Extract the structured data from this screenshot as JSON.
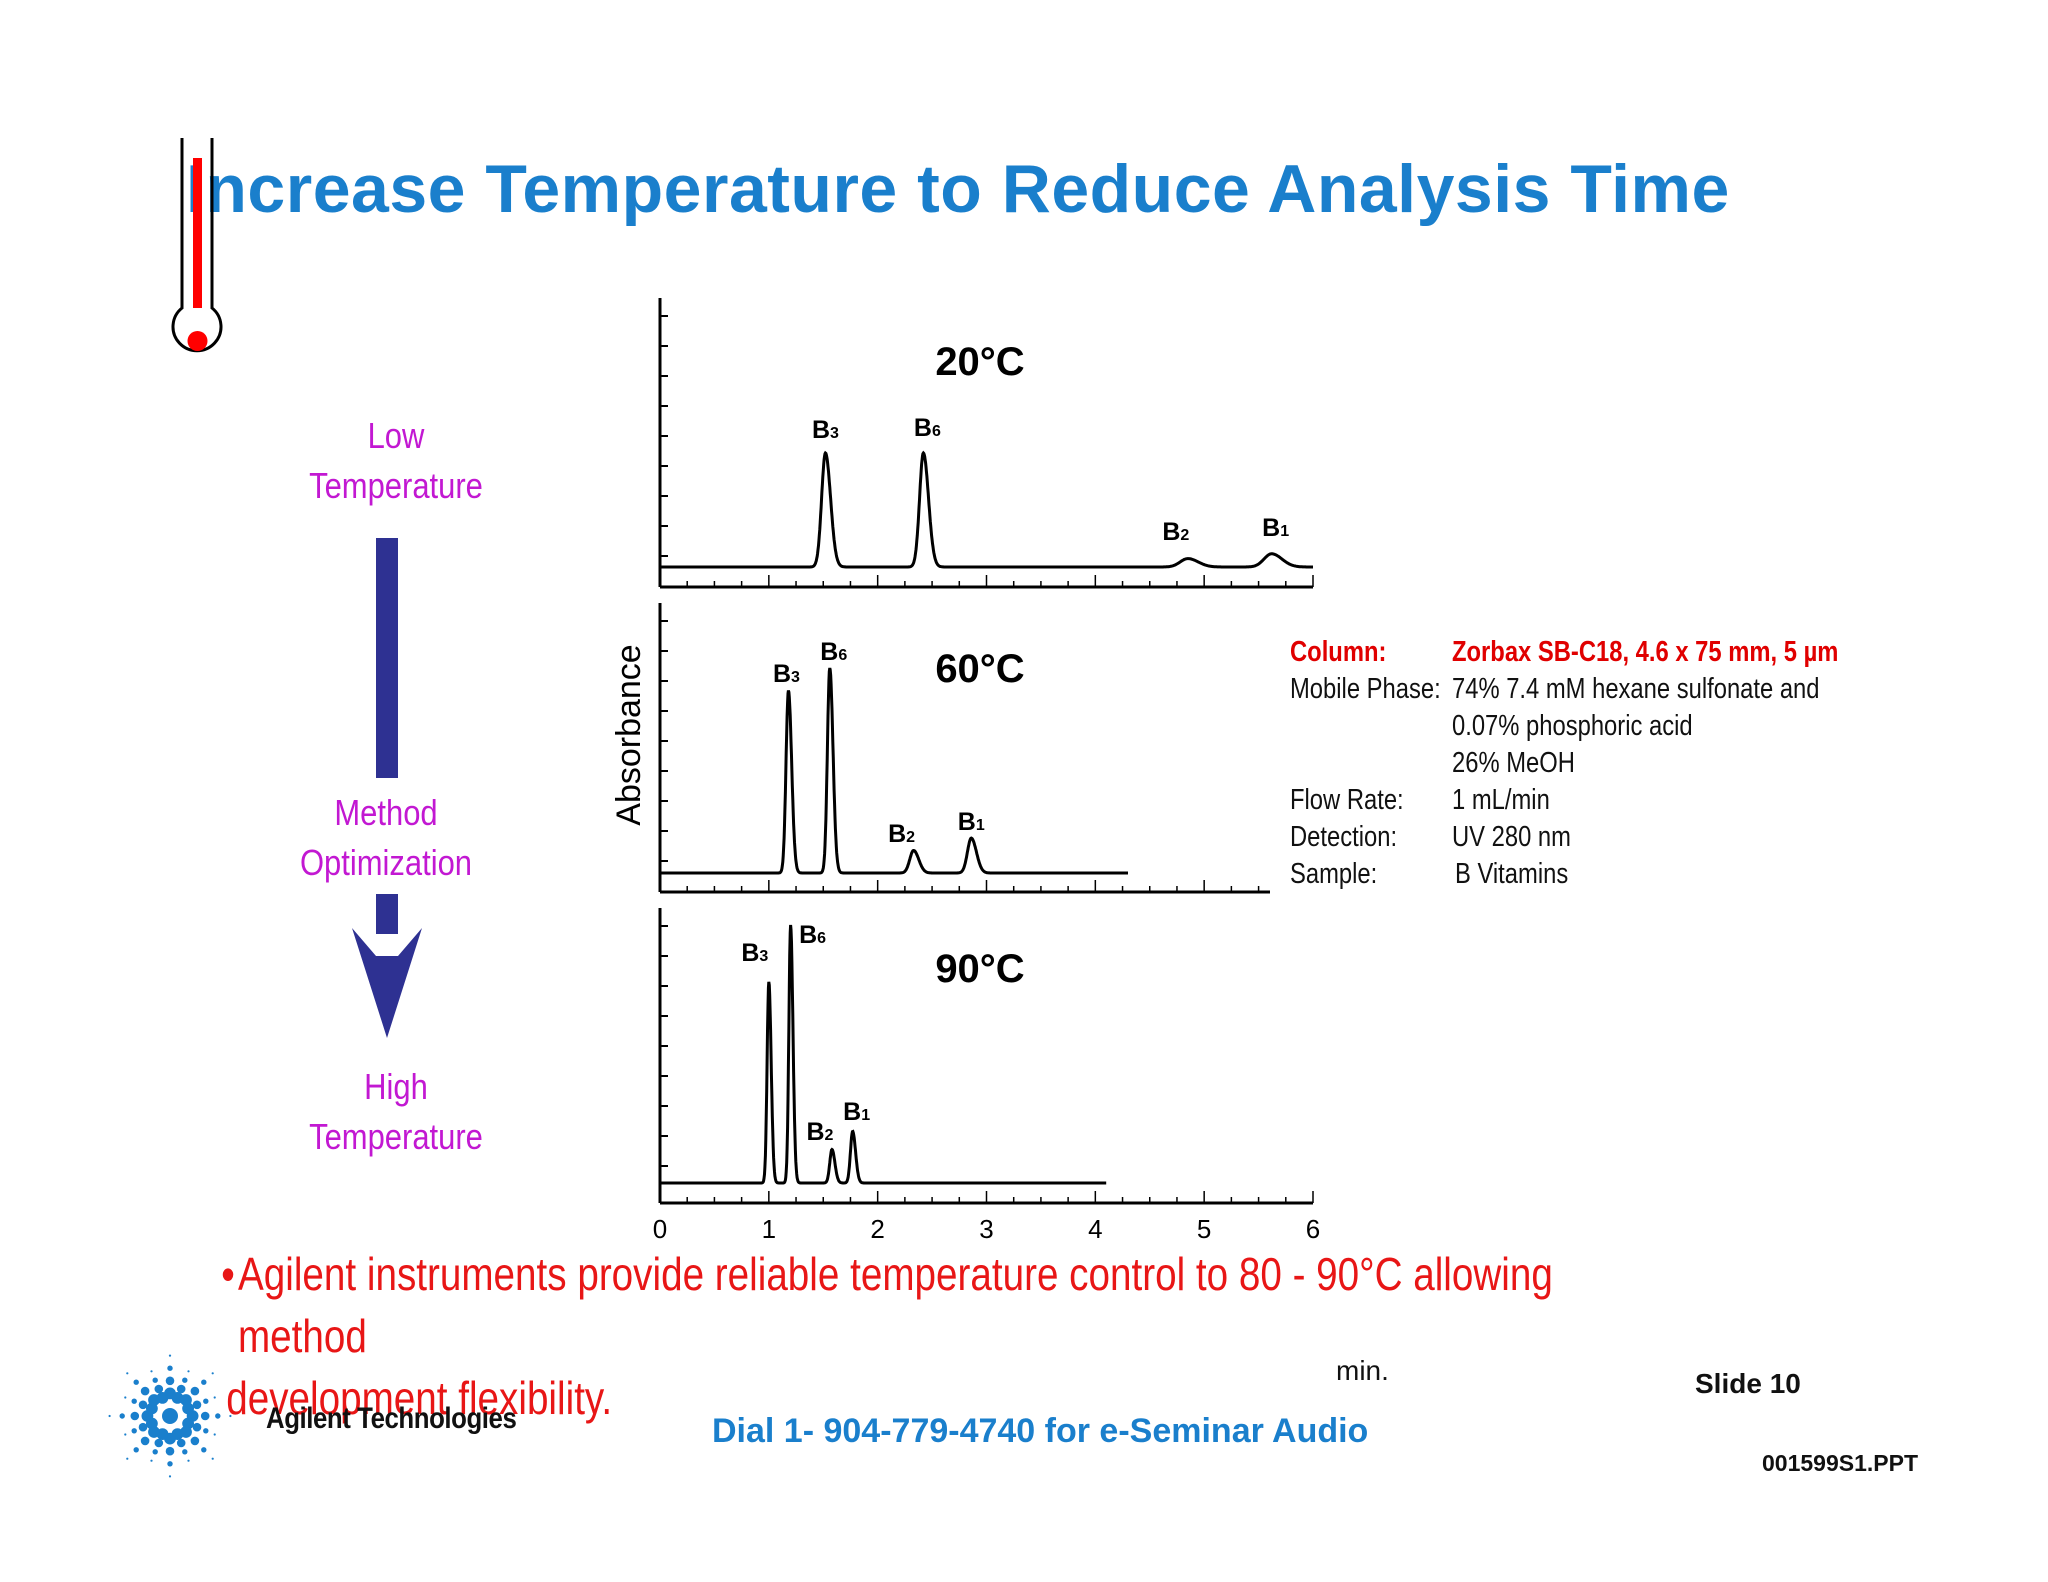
{
  "slide": {
    "title": "Increase Temperature to Reduce Analysis Time",
    "left_labels": {
      "low": [
        "Low",
        "Temperature"
      ],
      "method": [
        "Method",
        "Optimization"
      ],
      "high": [
        "High",
        "Temperature"
      ]
    },
    "bullet": "Agilent instruments provide reliable temperature control to 80 - 90°C  allowing method development flexibility.",
    "bullet_lines": [
      "Agilent instruments provide reliable temperature control to 80 - 90°C  allowing method",
      "development flexibility."
    ],
    "bullet_mark": "•",
    "phone": "Dial 1- 904-779-4740 for e-Seminar Audio",
    "slide_number": "Slide 10",
    "file_code": "001599S1.PPT",
    "brand": "Agilent Technologies"
  },
  "conditions": [
    {
      "label": "Column:",
      "value": [
        "Zorbax SB-C18, 4.6 x 75 mm, 5 µm"
      ],
      "highlight": true
    },
    {
      "label": "Mobile Phase:",
      "value": [
        "74% 7.4 mM hexane sulfonate and",
        "0.07% phosphoric acid",
        "26% MeOH"
      ],
      "highlight": false
    },
    {
      "label": "Flow Rate:",
      "value": [
        "1 mL/min"
      ],
      "highlight": false
    },
    {
      "label": "Detection:",
      "value": [
        "UV 280 nm"
      ],
      "highlight": false
    },
    {
      "label": "Sample:",
      "value": [
        "B Vitamins"
      ],
      "highlight": false
    }
  ],
  "colors": {
    "title": "#1a7fcc",
    "side_labels": "#c218d2",
    "arrow": "#2e3192",
    "bullet": "#e81616",
    "thermometer": "#ff0000",
    "logo": "#1a7fcc"
  },
  "chart_data": {
    "type": "line",
    "xlabel": "min.",
    "ylabel": "Absorbance",
    "xlim": [
      0,
      6
    ],
    "xticks": [
      0,
      1,
      2,
      3,
      4,
      5,
      6
    ],
    "panels": [
      {
        "label": "20°C",
        "run_end": 6.0,
        "peaks": [
          {
            "name": "B",
            "sub": "3",
            "rt": 1.52,
            "height": 0.95,
            "width": 0.035
          },
          {
            "name": "B",
            "sub": "6",
            "rt": 2.42,
            "height": 0.95,
            "width": 0.035
          },
          {
            "name": "B",
            "sub": "2",
            "rt": 4.85,
            "height": 0.07,
            "width": 0.07
          },
          {
            "name": "B",
            "sub": "1",
            "rt": 5.62,
            "height": 0.11,
            "width": 0.07
          }
        ]
      },
      {
        "label": "60°C",
        "run_end": 4.3,
        "peaks": [
          {
            "name": "B",
            "sub": "3",
            "rt": 1.18,
            "height": 0.89,
            "width": 0.022
          },
          {
            "name": "B",
            "sub": "6",
            "rt": 1.56,
            "height": 1.0,
            "width": 0.022
          },
          {
            "name": "B",
            "sub": "2",
            "rt": 2.33,
            "height": 0.11,
            "width": 0.035
          },
          {
            "name": "B",
            "sub": "1",
            "rt": 2.86,
            "height": 0.17,
            "width": 0.035
          }
        ]
      },
      {
        "label": "90°C",
        "run_end": 4.1,
        "peaks": [
          {
            "name": "B",
            "sub": "3",
            "rt": 1.0,
            "height": 0.78,
            "width": 0.016
          },
          {
            "name": "B",
            "sub": "6",
            "rt": 1.2,
            "height": 1.0,
            "width": 0.016
          },
          {
            "name": "B",
            "sub": "2",
            "rt": 1.58,
            "height": 0.13,
            "width": 0.02
          },
          {
            "name": "B",
            "sub": "1",
            "rt": 1.77,
            "height": 0.2,
            "width": 0.02
          }
        ]
      }
    ]
  }
}
